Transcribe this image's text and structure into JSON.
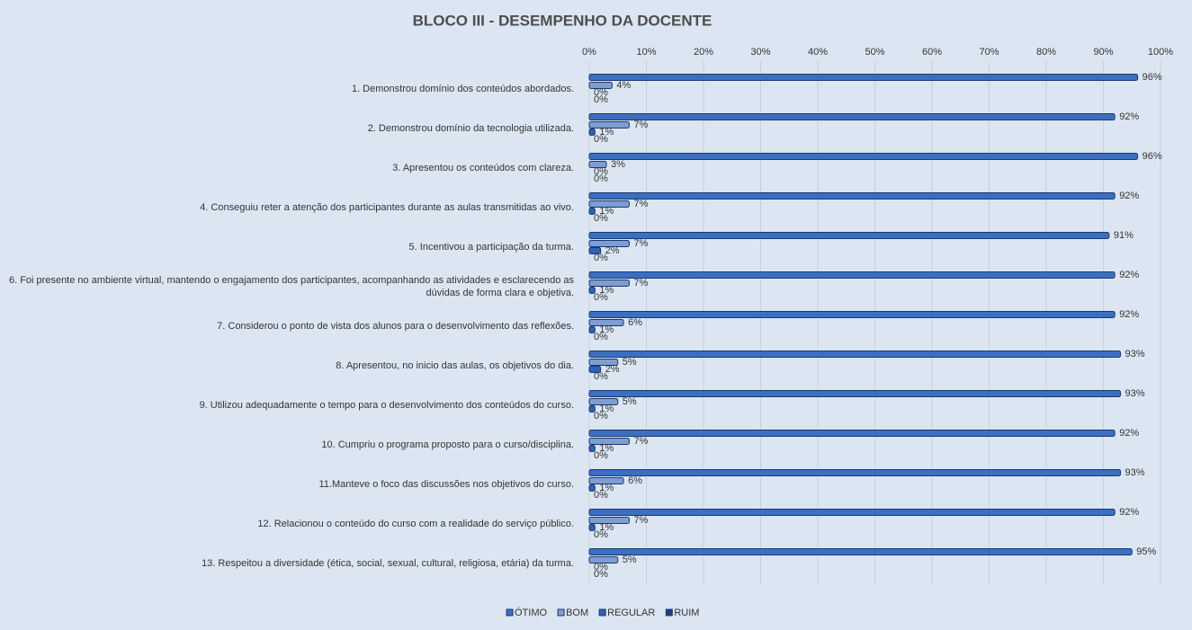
{
  "chart_data": {
    "type": "bar",
    "orientation": "horizontal",
    "title": "BLOCO III - DESEMPENHO  DA DOCENTE",
    "categories": [
      "1. Demonstrou domínio dos conteúdos abordados.",
      "2. Demonstrou domínio da tecnologia utilizada.",
      "3. Apresentou os conteúdos com clareza.",
      "4. Conseguiu reter a atenção dos participantes durante as aulas transmitidas ao vivo.",
      "5. Incentivou a participação da turma.",
      "6. Foi presente no ambiente virtual, mantendo o engajamento dos participantes, acompanhando as atividades e esclarecendo as dúvidas de forma clara e objetiva.",
      "7. Considerou o ponto de vista dos alunos para o desenvolvimento das reflexões.",
      "8. Apresentou, no inicio das aulas, os objetivos do dia.",
      "9. Utilizou adequadamente o tempo para o desenvolvimento dos conteúdos do curso.",
      "10. Cumpriu o programa proposto para o curso/disciplina.",
      "11.Manteve o foco das discussões nos objetivos do curso.",
      "12. Relacionou o conteúdo do curso com a realidade do serviço público.",
      "13. Respeitou a diversidade (ética, social, sexual, cultural, religiosa, etária) da turma."
    ],
    "series": [
      {
        "name": "ÓTIMO",
        "color": "#3b6fc1",
        "values": [
          96,
          92,
          96,
          92,
          91,
          92,
          92,
          93,
          93,
          92,
          93,
          92,
          95
        ],
        "value_labels": [
          "96%",
          "92%",
          "96%",
          "92%",
          "91%",
          "92%",
          "92%",
          "93%",
          "93%",
          "92%",
          "93%",
          "92%",
          "95%"
        ]
      },
      {
        "name": "BOM",
        "color": "#7d9dd3",
        "values": [
          4,
          7,
          3,
          7,
          7,
          7,
          6,
          5,
          5,
          7,
          6,
          7,
          5
        ],
        "value_labels": [
          "4%",
          "7%",
          "3%",
          "7%",
          "7%",
          "7%",
          "6%",
          "5%",
          "5%",
          "7%",
          "6%",
          "7%",
          "5%"
        ]
      },
      {
        "name": "REGULAR",
        "color": "#2e62b3",
        "values": [
          0,
          1,
          0,
          1,
          2,
          1,
          1,
          2,
          1,
          1,
          1,
          1,
          0
        ],
        "value_labels": [
          "0%",
          "1%",
          "0%",
          "1%",
          "2%",
          "1%",
          "1%",
          "2%",
          "1%",
          "1%",
          "1%",
          "1%",
          "0%"
        ]
      },
      {
        "name": "RUIM",
        "color": "#1f3f7a",
        "values": [
          0,
          0,
          0,
          0,
          0,
          0,
          0,
          0,
          0,
          0,
          0,
          0,
          0
        ],
        "value_labels": [
          "0%",
          "0%",
          "0%",
          "0%",
          "0%",
          "0%",
          "0%",
          "0%",
          "0%",
          "0%",
          "0%",
          "0%",
          "0%"
        ]
      }
    ],
    "xlim": [
      0,
      100
    ],
    "xticks": [
      {
        "value": 0,
        "label": "0%"
      },
      {
        "value": 10,
        "label": "10%"
      },
      {
        "value": 20,
        "label": "20%"
      },
      {
        "value": 30,
        "label": "30%"
      },
      {
        "value": 40,
        "label": "40%"
      },
      {
        "value": 50,
        "label": "50%"
      },
      {
        "value": 60,
        "label": "60%"
      },
      {
        "value": 70,
        "label": "70%"
      },
      {
        "value": 80,
        "label": "80%"
      },
      {
        "value": 90,
        "label": "90%"
      },
      {
        "value": 100,
        "label": "100%"
      }
    ],
    "grid": true,
    "legend": "bottom"
  }
}
